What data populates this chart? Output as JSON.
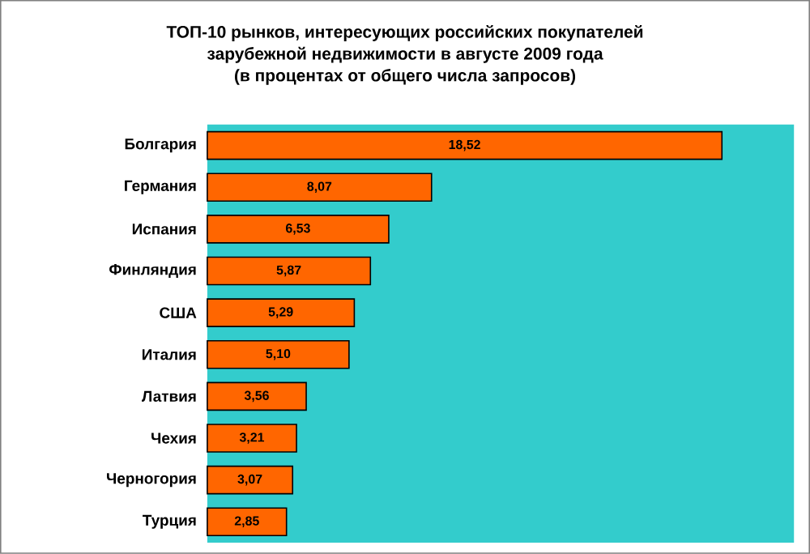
{
  "chart_data": {
    "type": "bar",
    "orientation": "horizontal",
    "title": "ТОП-10 рынков, интересующих российских покупателей\nзарубежной недвижимости в августе 2009 года\n(в процентах от общего числа запросов)",
    "categories": [
      "Болгария",
      "Германия",
      "Испания",
      "Финляндия",
      "США",
      "Италия",
      "Латвия",
      "Чехия",
      "Черногория",
      "Турция"
    ],
    "values": [
      18.52,
      8.07,
      6.53,
      5.87,
      5.29,
      5.1,
      3.56,
      3.21,
      3.07,
      2.85
    ],
    "value_labels": [
      "18,52",
      "8,07",
      "6,53",
      "5,87",
      "5,29",
      "5,10",
      "3,56",
      "3,21",
      "3,07",
      "2,85"
    ],
    "color": "#ff6600"
  }
}
